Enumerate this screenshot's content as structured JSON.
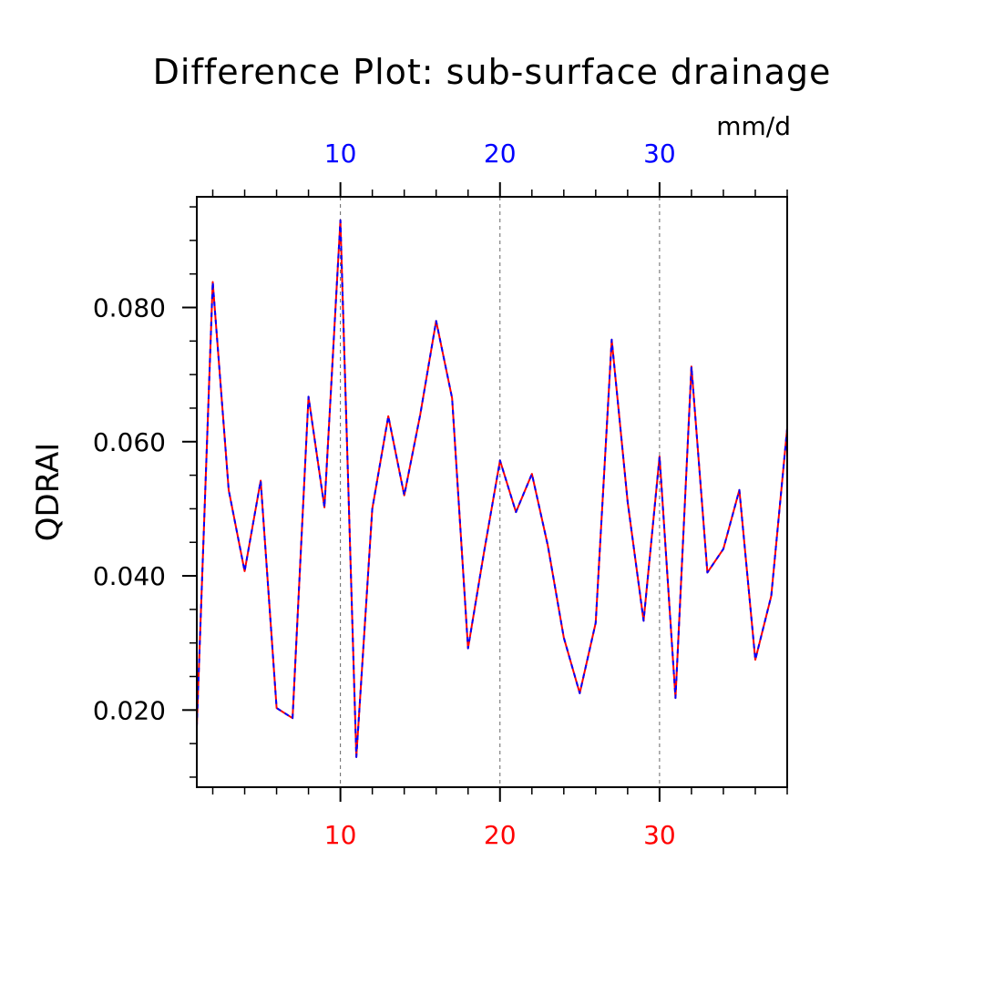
{
  "colors": {
    "series_solid": "#ff0000",
    "series_dashed": "#0000ff",
    "bottom_axis_labels": "#ff0000",
    "top_axis_labels": "#0000ff",
    "axis": "#000000",
    "grid": "#666666"
  },
  "chart_data": {
    "type": "line",
    "title": "Difference Plot: sub-surface drainage",
    "units": "mm/d",
    "ylabel": "QDRAI",
    "xlabel": "",
    "xlim": [
      1,
      38
    ],
    "ylim": [
      0.0085,
      0.0965
    ],
    "x_ticks": [
      10,
      20,
      30
    ],
    "y_ticks": [
      0.02,
      0.04,
      0.06,
      0.08
    ],
    "y_tick_labels": [
      "0.020",
      "0.040",
      "0.060",
      "0.080"
    ],
    "grid": "vertical dashed at major x ticks",
    "x": [
      1,
      2,
      3,
      4,
      5,
      6,
      7,
      8,
      9,
      10,
      11,
      12,
      13,
      14,
      15,
      16,
      17,
      18,
      19,
      20,
      21,
      22,
      23,
      24,
      25,
      26,
      27,
      28,
      29,
      30,
      31,
      32,
      33,
      34,
      35,
      36,
      37,
      38
    ],
    "series": [
      {
        "style": "solid red with dashed blue overlay",
        "values": [
          0.0175,
          0.0838,
          0.0528,
          0.0407,
          0.0542,
          0.0203,
          0.0188,
          0.0667,
          0.0502,
          0.093,
          0.013,
          0.05,
          0.0638,
          0.052,
          0.064,
          0.078,
          0.0665,
          0.0292,
          0.0435,
          0.0572,
          0.0495,
          0.0552,
          0.0445,
          0.0308,
          0.0225,
          0.033,
          0.0752,
          0.051,
          0.0333,
          0.0578,
          0.0218,
          0.0712,
          0.0405,
          0.044,
          0.0528,
          0.0275,
          0.037,
          0.062
        ]
      }
    ]
  }
}
